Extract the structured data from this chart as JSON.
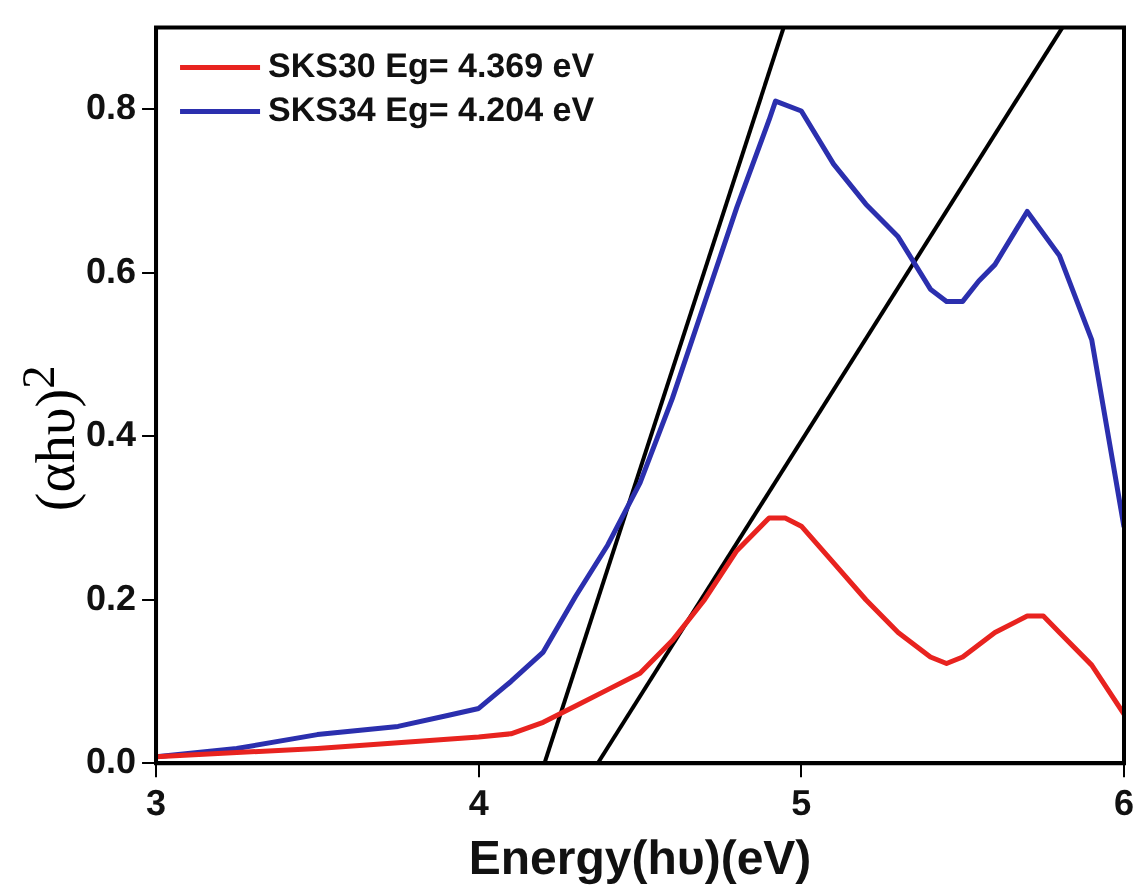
{
  "chart_data": {
    "type": "line",
    "xlabel": "Energy(hυ)(eV)",
    "ylabel": "(αhυ)$^{2}$",
    "xlim": [
      3,
      6
    ],
    "xticks": [
      3,
      4,
      5,
      6
    ],
    "ylim": [
      0,
      0.9
    ],
    "yticks": [
      {
        "value": 0,
        "label": "0.0"
      },
      {
        "value": 0.2,
        "label": "0.2"
      },
      {
        "value": 0.4,
        "label": "0.4"
      },
      {
        "value": 0.6,
        "label": "0.6"
      },
      {
        "value": 0.8,
        "label": "0.8"
      }
    ],
    "grid": false,
    "legend": "top left",
    "marker": "none",
    "line_style": "solid",
    "series": [
      {
        "name": "SKS30 Eg= 4.369 eV",
        "color": "#e8231f",
        "x": [
          3.0,
          3.5,
          3.75,
          4.0,
          4.1,
          4.2,
          4.3,
          4.4,
          4.5,
          4.6,
          4.7,
          4.8,
          4.9,
          4.95,
          5.0,
          5.1,
          5.2,
          5.3,
          5.4,
          5.45,
          5.5,
          5.6,
          5.7,
          5.75,
          5.8,
          5.9,
          6.0
        ],
        "values": [
          0.008,
          0.018,
          0.025,
          0.032,
          0.036,
          0.05,
          0.07,
          0.09,
          0.11,
          0.15,
          0.2,
          0.26,
          0.3,
          0.3,
          0.29,
          0.245,
          0.2,
          0.16,
          0.13,
          0.122,
          0.13,
          0.16,
          0.18,
          0.18,
          0.16,
          0.12,
          0.06
        ]
      },
      {
        "name": "SKS34 Eg= 4.204 eV",
        "color": "#2b2fae",
        "x": [
          3.0,
          3.25,
          3.5,
          3.75,
          3.9,
          4.0,
          4.1,
          4.2,
          4.3,
          4.4,
          4.5,
          4.6,
          4.7,
          4.8,
          4.9,
          4.92,
          5.0,
          5.1,
          5.2,
          5.3,
          5.4,
          5.45,
          5.5,
          5.55,
          5.6,
          5.7,
          5.8,
          5.9,
          6.0
        ],
        "values": [
          0.008,
          0.018,
          0.035,
          0.045,
          0.058,
          0.067,
          0.1,
          0.136,
          0.204,
          0.267,
          0.343,
          0.446,
          0.563,
          0.68,
          0.787,
          0.81,
          0.798,
          0.733,
          0.684,
          0.644,
          0.58,
          0.565,
          0.565,
          0.59,
          0.61,
          0.675,
          0.621,
          0.518,
          0.289
        ]
      },
      {
        "type": "line",
        "color": "#000000",
        "x": [
          4.204,
          4.945
        ],
        "values": [
          0,
          0.9
        ]
      },
      {
        "type": "line",
        "color": "#000000",
        "x": [
          4.369,
          5.809
        ],
        "values": [
          0,
          0.9
        ]
      }
    ]
  }
}
